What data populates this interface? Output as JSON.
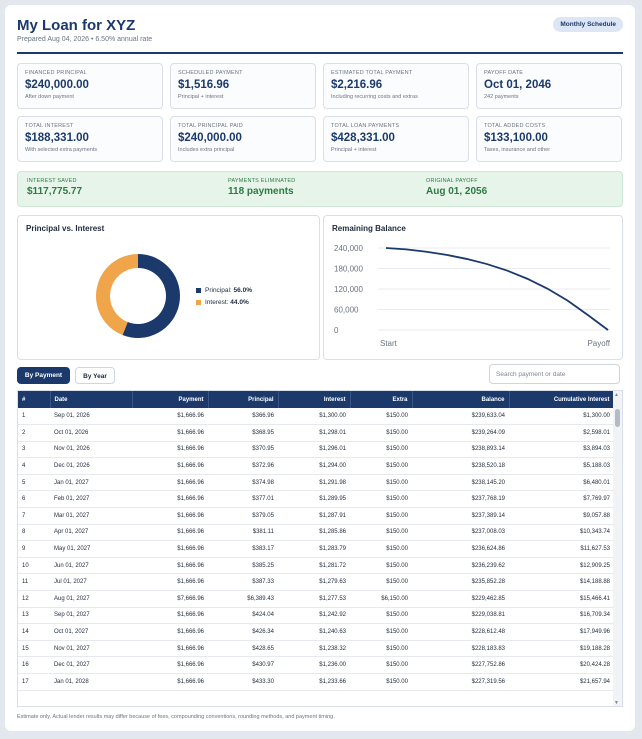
{
  "header": {
    "title": "My Loan for XYZ",
    "subtitle": "Prepared Aug 04, 2026 • 6.50% annual rate",
    "schedule_button": "Monthly Schedule"
  },
  "stats": [
    {
      "label": "FINANCED PRINCIPAL",
      "value": "$240,000.00",
      "note": "After down payment"
    },
    {
      "label": "SCHEDULED PAYMENT",
      "value": "$1,516.96",
      "note": "Principal + interest"
    },
    {
      "label": "ESTIMATED TOTAL PAYMENT",
      "value": "$2,216.96",
      "note": "Including recurring costs and extras"
    },
    {
      "label": "PAYOFF DATE",
      "value": "Oct 01, 2046",
      "note": "242 payments"
    },
    {
      "label": "TOTAL INTEREST",
      "value": "$188,331.00",
      "note": "With selected extra payments"
    },
    {
      "label": "TOTAL PRINCIPAL PAID",
      "value": "$240,000.00",
      "note": "Includes extra principal"
    },
    {
      "label": "TOTAL LOAN PAYMENTS",
      "value": "$428,331.00",
      "note": "Principal + interest"
    },
    {
      "label": "TOTAL ADDED COSTS",
      "value": "$133,100.00",
      "note": "Taxes, insurance and other"
    }
  ],
  "savings": [
    {
      "label": "INTEREST SAVED",
      "value": "$117,775.77"
    },
    {
      "label": "PAYMENTS ELIMINATED",
      "value": "118 payments"
    },
    {
      "label": "ORIGINAL PAYOFF",
      "value": "Aug 01, 2056"
    }
  ],
  "colors": {
    "principal": "#1b3a6b",
    "interest": "#f0a54a",
    "accent": "#1b3a6b",
    "saved": "#2d7a45"
  },
  "principal_chart": {
    "title": "Principal vs. Interest",
    "legend": [
      {
        "label": "Principal:",
        "value": "56.0%"
      },
      {
        "label": "Interest:",
        "value": "44.0%"
      }
    ]
  },
  "chart_data": [
    {
      "type": "pie",
      "title": "Principal vs. Interest",
      "categories": [
        "Principal",
        "Interest"
      ],
      "values": [
        56.0,
        44.0
      ],
      "legend": "right"
    },
    {
      "type": "line",
      "title": "Remaining Balance",
      "x_ticks": [
        "Start",
        "Payoff"
      ],
      "y_ticks": [
        "240,000",
        "180,000",
        "120,000",
        "60,000",
        "0"
      ],
      "ylim": [
        0,
        240000
      ],
      "series": [
        {
          "values": [
            240000,
            236000,
            229000,
            220000,
            208000,
            193000,
            174000,
            150000,
            121000,
            86000,
            44000,
            0
          ]
        }
      ]
    }
  ],
  "balance_chart": {
    "title": "Remaining Balance"
  },
  "table": {
    "tabs": [
      "By Payment",
      "By Year"
    ],
    "search_placeholder": "Search payment or date",
    "headers": [
      "#",
      "Date",
      "Payment",
      "Principal",
      "Interest",
      "Extra",
      "Balance",
      "Cumulative Interest"
    ],
    "rows": [
      [
        "1",
        "Sep 01, 2026",
        "$1,666.96",
        "$366.96",
        "$1,300.00",
        "$150.00",
        "$239,633.04",
        "$1,300.00"
      ],
      [
        "2",
        "Oct 01, 2026",
        "$1,666.96",
        "$368.95",
        "$1,298.01",
        "$150.00",
        "$239,264.09",
        "$2,598.01"
      ],
      [
        "3",
        "Nov 01, 2026",
        "$1,666.96",
        "$370.95",
        "$1,296.01",
        "$150.00",
        "$238,893.14",
        "$3,894.03"
      ],
      [
        "4",
        "Dec 01, 2026",
        "$1,666.96",
        "$372.96",
        "$1,294.00",
        "$150.00",
        "$238,520.18",
        "$5,188.03"
      ],
      [
        "5",
        "Jan 01, 2027",
        "$1,666.96",
        "$374.98",
        "$1,291.98",
        "$150.00",
        "$238,145.20",
        "$6,480.01"
      ],
      [
        "6",
        "Feb 01, 2027",
        "$1,666.96",
        "$377.01",
        "$1,289.95",
        "$150.00",
        "$237,768.19",
        "$7,769.97"
      ],
      [
        "7",
        "Mar 01, 2027",
        "$1,666.96",
        "$379.05",
        "$1,287.91",
        "$150.00",
        "$237,389.14",
        "$9,057.88"
      ],
      [
        "8",
        "Apr 01, 2027",
        "$1,666.96",
        "$381.11",
        "$1,285.86",
        "$150.00",
        "$237,008.03",
        "$10,343.74"
      ],
      [
        "9",
        "May 01, 2027",
        "$1,666.96",
        "$383.17",
        "$1,283.79",
        "$150.00",
        "$236,624.86",
        "$11,627.53"
      ],
      [
        "10",
        "Jun 01, 2027",
        "$1,666.96",
        "$385.25",
        "$1,281.72",
        "$150.00",
        "$236,239.62",
        "$12,909.25"
      ],
      [
        "11",
        "Jul 01, 2027",
        "$1,666.96",
        "$387.33",
        "$1,279.63",
        "$150.00",
        "$235,852.28",
        "$14,188.88"
      ],
      [
        "12",
        "Aug 01, 2027",
        "$7,666.96",
        "$6,389.43",
        "$1,277.53",
        "$6,150.00",
        "$229,462.85",
        "$15,466.41"
      ],
      [
        "13",
        "Sep 01, 2027",
        "$1,666.96",
        "$424.04",
        "$1,242.92",
        "$150.00",
        "$229,038.81",
        "$16,709.34"
      ],
      [
        "14",
        "Oct 01, 2027",
        "$1,666.96",
        "$426.34",
        "$1,240.63",
        "$150.00",
        "$228,612.48",
        "$17,949.96"
      ],
      [
        "15",
        "Nov 01, 2027",
        "$1,666.96",
        "$428.65",
        "$1,238.32",
        "$150.00",
        "$228,183.83",
        "$19,188.28"
      ],
      [
        "16",
        "Dec 01, 2027",
        "$1,666.96",
        "$430.97",
        "$1,236.00",
        "$150.00",
        "$227,752.86",
        "$20,424.28"
      ],
      [
        "17",
        "Jan 01, 2028",
        "$1,666.96",
        "$433.30",
        "$1,233.66",
        "$150.00",
        "$227,319.56",
        "$21,657.94"
      ]
    ]
  },
  "footnote": "Estimate only. Actual lender results may differ because of fees, compounding conventions, rounding methods, and payment timing."
}
